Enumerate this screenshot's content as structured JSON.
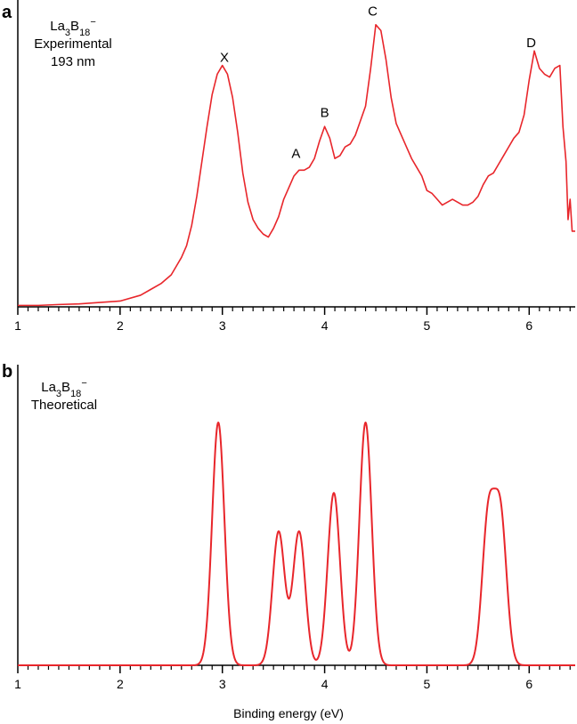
{
  "chart_data": [
    {
      "type": "line",
      "panel_label": "a",
      "annotation_lines": [
        "La3B18−",
        "Experimental",
        "193 nm"
      ],
      "xlabel": "",
      "ylabel": "",
      "xlim": [
        1,
        6.45
      ],
      "ylim": [
        0,
        1.0
      ],
      "x_ticks": [
        1,
        2,
        3,
        4,
        5,
        6
      ],
      "x_tick_labels": [
        "1",
        "2",
        "3",
        "4",
        "5",
        "6"
      ],
      "grid": false,
      "color": "#e8262b",
      "peak_labels": [
        {
          "text": "X",
          "x": 3.02,
          "y": 0.83
        },
        {
          "text": "A",
          "x": 3.72,
          "y": 0.5
        },
        {
          "text": "B",
          "x": 4.0,
          "y": 0.64
        },
        {
          "text": "C",
          "x": 4.47,
          "y": 0.99
        },
        {
          "text": "D",
          "x": 6.02,
          "y": 0.88
        }
      ],
      "series": [
        {
          "x": [
            1.0,
            1.2,
            1.4,
            1.6,
            1.8,
            2.0,
            2.2,
            2.3,
            2.4,
            2.5,
            2.55,
            2.6,
            2.65,
            2.7,
            2.75,
            2.8,
            2.85,
            2.9,
            2.95,
            3.0,
            3.05,
            3.1,
            3.15,
            3.2,
            3.25,
            3.3,
            3.35,
            3.4,
            3.45,
            3.5,
            3.55,
            3.6,
            3.65,
            3.7,
            3.75,
            3.8,
            3.85,
            3.9,
            3.95,
            4.0,
            4.05,
            4.1,
            4.15,
            4.2,
            4.25,
            4.3,
            4.35,
            4.4,
            4.45,
            4.5,
            4.55,
            4.6,
            4.65,
            4.7,
            4.75,
            4.8,
            4.85,
            4.9,
            4.95,
            5.0,
            5.05,
            5.1,
            5.15,
            5.2,
            5.25,
            5.3,
            5.35,
            5.4,
            5.45,
            5.5,
            5.55,
            5.6,
            5.65,
            5.7,
            5.75,
            5.8,
            5.85,
            5.9,
            5.95,
            6.0,
            6.05,
            6.1,
            6.15,
            6.2,
            6.25,
            6.3,
            6.33,
            6.36,
            6.38,
            6.4,
            6.42,
            6.45
          ],
          "y": [
            0.005,
            0.005,
            0.008,
            0.01,
            0.015,
            0.02,
            0.04,
            0.06,
            0.08,
            0.11,
            0.14,
            0.17,
            0.21,
            0.28,
            0.38,
            0.5,
            0.62,
            0.73,
            0.8,
            0.83,
            0.8,
            0.72,
            0.6,
            0.46,
            0.36,
            0.3,
            0.27,
            0.25,
            0.24,
            0.27,
            0.31,
            0.37,
            0.41,
            0.45,
            0.47,
            0.47,
            0.48,
            0.51,
            0.57,
            0.62,
            0.58,
            0.51,
            0.52,
            0.55,
            0.56,
            0.59,
            0.64,
            0.69,
            0.82,
            0.97,
            0.95,
            0.85,
            0.72,
            0.63,
            0.59,
            0.55,
            0.51,
            0.48,
            0.45,
            0.4,
            0.39,
            0.37,
            0.35,
            0.36,
            0.37,
            0.36,
            0.35,
            0.35,
            0.36,
            0.38,
            0.42,
            0.45,
            0.46,
            0.49,
            0.52,
            0.55,
            0.58,
            0.6,
            0.66,
            0.78,
            0.88,
            0.82,
            0.8,
            0.79,
            0.82,
            0.83,
            0.62,
            0.5,
            0.3,
            0.37,
            0.26,
            0.26
          ]
        }
      ]
    },
    {
      "type": "line",
      "panel_label": "b",
      "annotation_lines": [
        "La3B18−",
        "Theoretical"
      ],
      "xlabel": "Binding energy (eV)",
      "ylabel": "",
      "xlim": [
        1,
        6.45
      ],
      "ylim": [
        0,
        1.0
      ],
      "x_ticks": [
        1,
        2,
        3,
        4,
        5,
        6
      ],
      "x_tick_labels": [
        "1",
        "2",
        "3",
        "4",
        "5",
        "6"
      ],
      "grid": false,
      "color": "#e8262b",
      "peaks": [
        {
          "center": 2.96,
          "height": 1.0,
          "width": 0.06
        },
        {
          "center": 3.55,
          "height": 0.55,
          "width": 0.06
        },
        {
          "center": 3.75,
          "height": 0.55,
          "width": 0.06
        },
        {
          "center": 4.09,
          "height": 0.71,
          "width": 0.06
        },
        {
          "center": 4.4,
          "height": 1.0,
          "width": 0.06
        },
        {
          "center": 5.6,
          "height": 0.6,
          "width": 0.06
        },
        {
          "center": 5.72,
          "height": 0.6,
          "width": 0.06
        }
      ]
    }
  ]
}
